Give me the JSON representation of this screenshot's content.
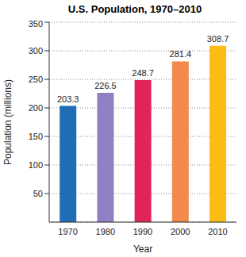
{
  "chart_data": {
    "type": "bar",
    "title": "U.S. Population, 1970–2010",
    "x_label": "Year",
    "y_label": "Population (millions)",
    "categories": [
      "1970",
      "1980",
      "1990",
      "2000",
      "2010"
    ],
    "values": [
      203.3,
      226.5,
      248.7,
      281.4,
      308.7
    ],
    "colors": [
      "#1f6db4",
      "#8f80c4",
      "#e0245c",
      "#f3894a",
      "#fbbd14"
    ],
    "ylim": [
      0,
      350
    ],
    "yticks": [
      50,
      100,
      150,
      200,
      250,
      300,
      350
    ],
    "grid": true,
    "data_labels": true
  }
}
